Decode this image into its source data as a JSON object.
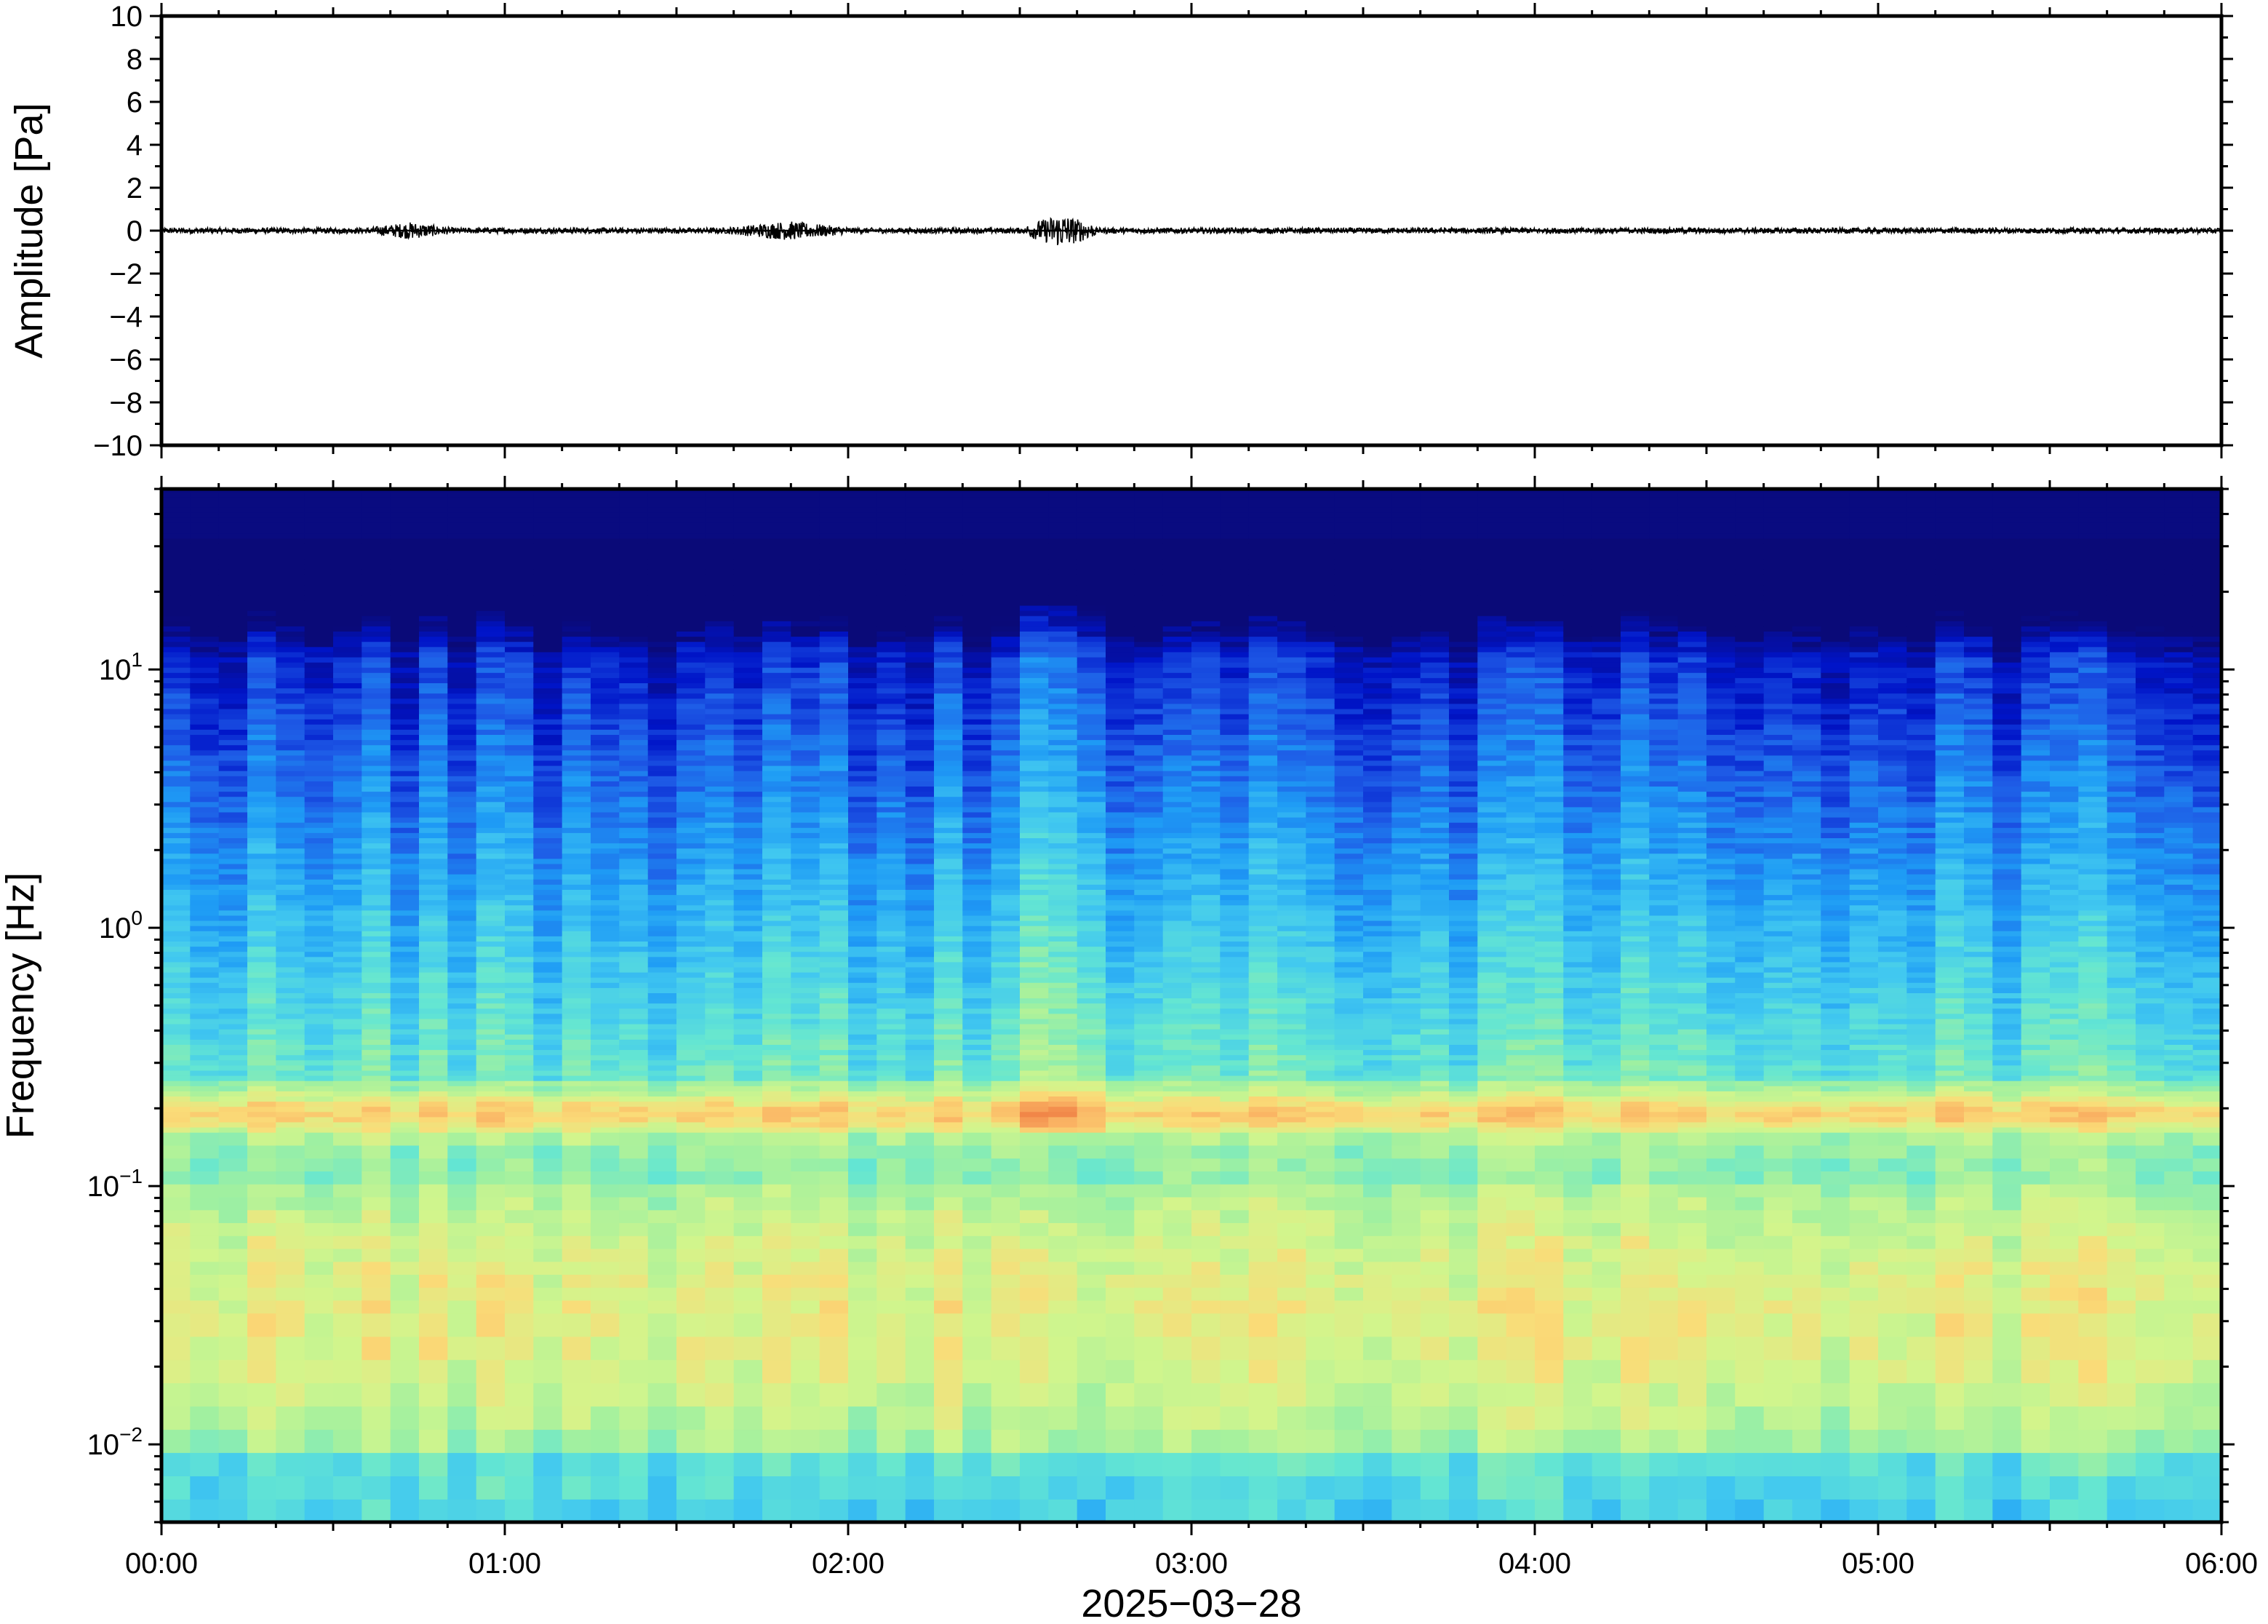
{
  "chart_data": [
    {
      "type": "line",
      "name": "waveform",
      "ylabel": "Amplitude [Pa]",
      "ylim": [
        -10,
        10
      ],
      "yticks": [
        10,
        8,
        6,
        4,
        2,
        0,
        -2,
        -4,
        -6,
        -8,
        -10
      ],
      "ytick_labels": [
        "10",
        "8",
        "6",
        "4",
        "2",
        "0",
        "−2",
        "−4",
        "−6",
        "−8",
        "−10"
      ],
      "xlim_hours": [
        0,
        6
      ],
      "line_color": "#000000",
      "description_values": {
        "baseline": 0,
        "typical_peak_abs": 0.3,
        "max_peak_abs": 0.8,
        "max_peak_time_hours": 2.62
      },
      "burst_windows_hours": [
        {
          "start": 0.6,
          "end": 0.85,
          "peak": 0.4
        },
        {
          "start": 1.65,
          "end": 2.0,
          "peak": 0.45
        },
        {
          "start": 2.52,
          "end": 2.72,
          "peak": 0.8
        }
      ]
    },
    {
      "type": "heatmap",
      "name": "spectrogram",
      "ylabel": "Frequency [Hz]",
      "yscale": "log",
      "ylim": [
        0.005,
        50
      ],
      "yticks": [
        10,
        1,
        0.1,
        0.01
      ],
      "ytick_labels": [
        {
          "base": "10",
          "exp": "1"
        },
        {
          "base": "10",
          "exp": "0"
        },
        {
          "base": "10",
          "exp": "−1"
        },
        {
          "base": "10",
          "exp": "−2"
        }
      ],
      "xlabel": "2025−03−28",
      "xlim_hours": [
        0,
        6
      ],
      "xticks_hours": [
        0,
        1,
        2,
        3,
        4,
        5,
        6
      ],
      "xtick_labels": [
        "00:00",
        "01:00",
        "02:00",
        "03:00",
        "04:00",
        "05:00",
        "06:00"
      ],
      "colormap": [
        "#0a0a78",
        "#0014c8",
        "#1e5ae6",
        "#1e9bf5",
        "#41c8f0",
        "#64e6d2",
        "#a0f0a0",
        "#d2f58c",
        "#fadc78",
        "#fab464",
        "#f08246"
      ],
      "features": {
        "microseism_band_hz": 0.19,
        "high_energy_band_hz": [
          0.03,
          0.1
        ],
        "event_time_hours": 2.62,
        "top_noise_cutoff_hz": 12
      }
    }
  ]
}
